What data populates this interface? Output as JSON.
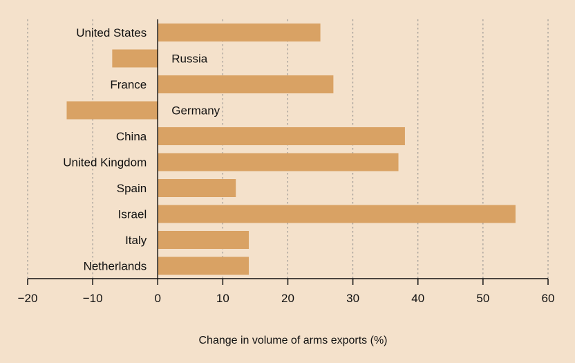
{
  "chart_data": {
    "type": "bar",
    "orientation": "horizontal",
    "categories": [
      "United States",
      "Russia",
      "France",
      "Germany",
      "China",
      "United Kingdom",
      "Spain",
      "Israel",
      "Italy",
      "Netherlands"
    ],
    "values": [
      25,
      -7,
      27,
      -14,
      38,
      37,
      12,
      55,
      14,
      14
    ],
    "xlabel": "Change in volume of arms exports (%)",
    "ylabel": "",
    "xlim": [
      -20,
      60
    ],
    "xticks": [
      -20,
      -10,
      0,
      10,
      20,
      30,
      40,
      50,
      60
    ],
    "xtick_labels": [
      "−20",
      "−10",
      "0",
      "10",
      "20",
      "30",
      "40",
      "50",
      "60"
    ],
    "grid": "vertical-dotted",
    "colors": {
      "bar": "#d9a264",
      "background": "#f4e1cb",
      "text": "#111111",
      "grid": "#8a8a8a"
    }
  }
}
